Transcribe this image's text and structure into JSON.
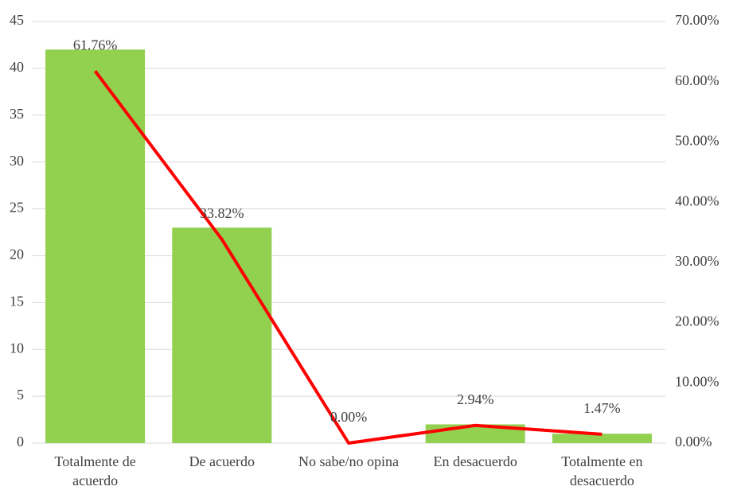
{
  "chart_data": {
    "type": "combo",
    "categories": [
      "Totalmente de acuerdo",
      "De acuerdo",
      "No sabe/no opina",
      "En desacuerdo",
      "Totalmente en desacuerdo"
    ],
    "series": [
      {
        "type": "bar",
        "color": "#92d050",
        "values": [
          42,
          23,
          0,
          2,
          1
        ]
      },
      {
        "type": "line",
        "axis": "y2",
        "color": "#ff0000",
        "values": [
          61.76,
          33.82,
          0,
          2.94,
          1.47
        ],
        "value_labels": [
          "61.76%",
          "33.82%",
          "0.00%",
          "2.94%",
          "1.47%"
        ]
      }
    ],
    "ylim": [
      0,
      45
    ],
    "yticks": [
      0,
      5,
      10,
      15,
      20,
      25,
      30,
      35,
      40,
      45
    ],
    "y2lim": [
      0,
      70
    ],
    "y2ticks": [
      {
        "value": 0,
        "label": "0.00%"
      },
      {
        "value": 10,
        "label": "10.00%"
      },
      {
        "value": 20,
        "label": "20.00%"
      },
      {
        "value": 30,
        "label": "30.00%"
      },
      {
        "value": 40,
        "label": "40.00%"
      },
      {
        "value": 50,
        "label": "50.00%"
      },
      {
        "value": 60,
        "label": "60.00%"
      },
      {
        "value": 70,
        "label": "70.00%"
      }
    ],
    "grid": true
  }
}
